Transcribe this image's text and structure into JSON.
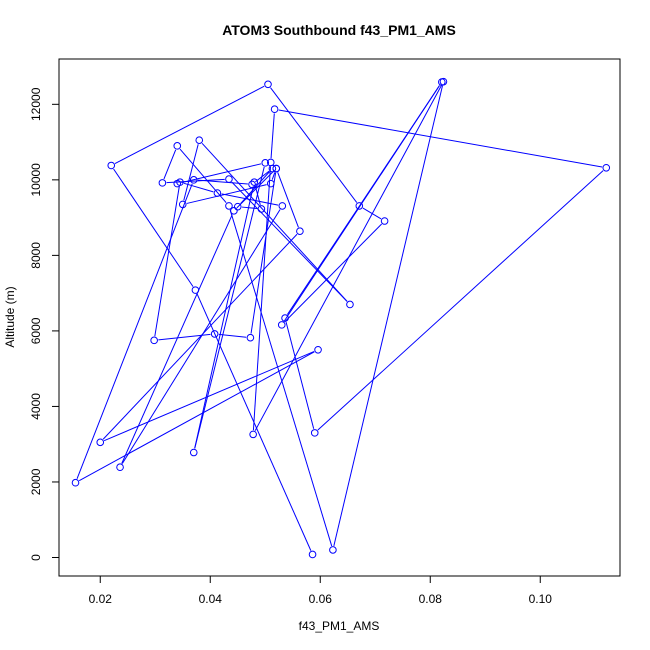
{
  "chart_data": {
    "type": "line",
    "title": "ATOM3 Southbound f43_PM1_AMS",
    "xlabel": "f43_PM1_AMS",
    "ylabel": "Altitude (m)",
    "xlim": [
      0.0125,
      0.1145
    ],
    "ylim": [
      -490,
      13200
    ],
    "xticks": [
      0.02,
      0.04,
      0.06,
      0.08,
      0.1
    ],
    "xtick_labels": [
      "0.02",
      "0.04",
      "0.06",
      "0.08",
      "0.10"
    ],
    "yticks": [
      0,
      2000,
      4000,
      6000,
      8000,
      10000,
      12000
    ],
    "ytick_labels": [
      "0",
      "2000",
      "4000",
      "6000",
      "8000",
      "10000",
      "12000"
    ],
    "grid": false,
    "legend": "none",
    "marker": "open-circle",
    "series": [
      {
        "x": [
          0.0586,
          0.0373,
          0.022,
          0.0505,
          0.0671,
          0.0717,
          0.053,
          0.0821,
          0.0536,
          0.059,
          0.112,
          0.0517,
          0.051,
          0.0478,
          0.0824,
          0.0623,
          0.0434,
          0.034,
          0.0313,
          0.0434,
          0.0654,
          0.038,
          0.035,
          0.051,
          0.052,
          0.0473,
          0.0408,
          0.0298,
          0.0345,
          0.0413,
          0.0531,
          0.0236,
          0.0443,
          0.052,
          0.0563,
          0.02,
          0.0596,
          0.0155,
          0.037,
          0.0476,
          0.0513,
          0.045,
          0.0493,
          0.048,
          0.037,
          0.05,
          0.034
        ],
        "y": [
          80,
          7080,
          10380,
          12530,
          9310,
          8910,
          6160,
          12590,
          6340,
          3300,
          10320,
          11870,
          10460,
          3260,
          12600,
          200,
          9310,
          10900,
          9920,
          10020,
          6700,
          11050,
          9350,
          9900,
          10300,
          5820,
          5920,
          5750,
          9940,
          9650,
          9310,
          2390,
          9180,
          10300,
          8640,
          3050,
          5500,
          1980,
          10000,
          9880,
          10300,
          9290,
          9230,
          9940,
          2780,
          10450,
          9900
        ]
      }
    ],
    "colors": {
      "line": "#0000ff",
      "marker": "#0000ff",
      "axes": "#000000"
    }
  }
}
